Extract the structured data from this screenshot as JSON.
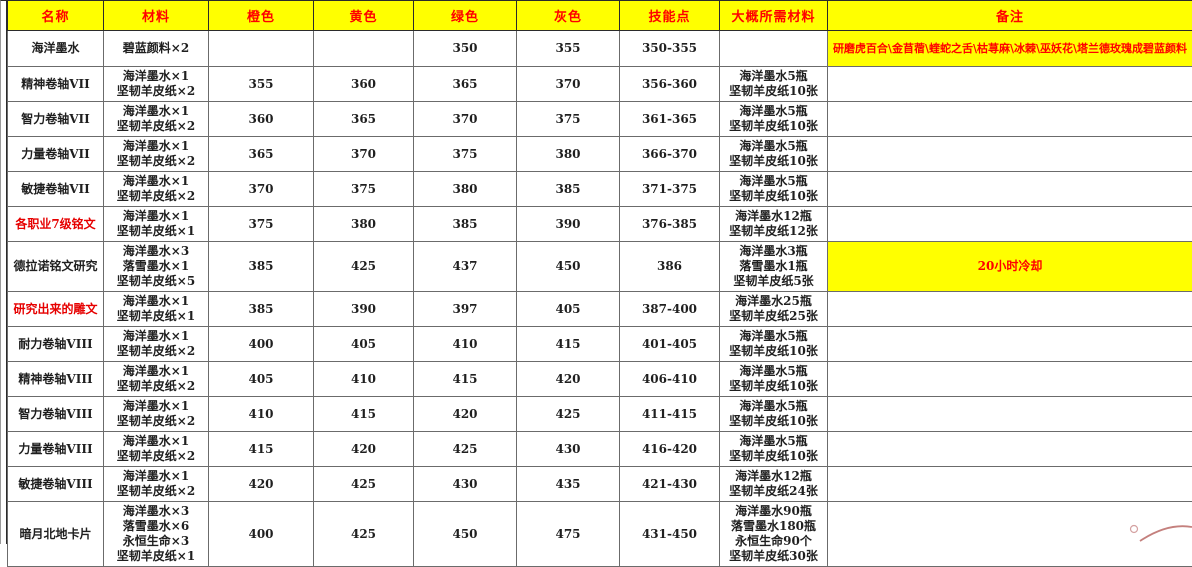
{
  "colors": {
    "header_bg": "#ffff00",
    "header_text": "#ff0000",
    "highlight_bg": "#ffff00",
    "highlight_text": "#ff0000",
    "red_name": "#e60000"
  },
  "table": {
    "columns": [
      {
        "key": "name",
        "label": "名称"
      },
      {
        "key": "materials",
        "label": "材料"
      },
      {
        "key": "orange",
        "label": "橙色"
      },
      {
        "key": "yellow",
        "label": "黄色"
      },
      {
        "key": "green",
        "label": "绿色"
      },
      {
        "key": "gray",
        "label": "灰色"
      },
      {
        "key": "skill",
        "label": "技能点"
      },
      {
        "key": "approx",
        "label": "大概所需材料"
      },
      {
        "key": "note",
        "label": "备注"
      }
    ],
    "rows": [
      {
        "name": "海洋墨水",
        "name_red": false,
        "materials": [
          "碧蓝颜料×2"
        ],
        "orange": "",
        "yellow": "",
        "green": "350",
        "gray": "355",
        "skill": "350-355",
        "approx": [],
        "note": "研磨虎百合\\金苜蓿\\蝰蛇之舌\\枯荨麻\\冰棘\\巫妖花\\塔兰德玫瑰成碧蓝颜料",
        "note_highlight": true,
        "note_long": true
      },
      {
        "name": "精神卷轴VII",
        "name_red": false,
        "materials": [
          "海洋墨水×1",
          "坚韧羊皮纸×2"
        ],
        "orange": "355",
        "yellow": "360",
        "green": "365",
        "gray": "370",
        "skill": "356-360",
        "approx": [
          "海洋墨水5瓶",
          "坚韧羊皮纸10张"
        ],
        "note": "",
        "note_highlight": false,
        "note_long": false
      },
      {
        "name": "智力卷轴VII",
        "name_red": false,
        "materials": [
          "海洋墨水×1",
          "坚韧羊皮纸×2"
        ],
        "orange": "360",
        "yellow": "365",
        "green": "370",
        "gray": "375",
        "skill": "361-365",
        "approx": [
          "海洋墨水5瓶",
          "坚韧羊皮纸10张"
        ],
        "note": "",
        "note_highlight": false,
        "note_long": false
      },
      {
        "name": "力量卷轴VII",
        "name_red": false,
        "materials": [
          "海洋墨水×1",
          "坚韧羊皮纸×2"
        ],
        "orange": "365",
        "yellow": "370",
        "green": "375",
        "gray": "380",
        "skill": "366-370",
        "approx": [
          "海洋墨水5瓶",
          "坚韧羊皮纸10张"
        ],
        "note": "",
        "note_highlight": false,
        "note_long": false
      },
      {
        "name": "敏捷卷轴VII",
        "name_red": false,
        "materials": [
          "海洋墨水×1",
          "坚韧羊皮纸×2"
        ],
        "orange": "370",
        "yellow": "375",
        "green": "380",
        "gray": "385",
        "skill": "371-375",
        "approx": [
          "海洋墨水5瓶",
          "坚韧羊皮纸10张"
        ],
        "note": "",
        "note_highlight": false,
        "note_long": false
      },
      {
        "name": "各职业7级铭文",
        "name_red": true,
        "materials": [
          "海洋墨水×1",
          "坚韧羊皮纸×1"
        ],
        "orange": "375",
        "yellow": "380",
        "green": "385",
        "gray": "390",
        "skill": "376-385",
        "approx": [
          "海洋墨水12瓶",
          "坚韧羊皮纸12张"
        ],
        "note": "",
        "note_highlight": false,
        "note_long": false
      },
      {
        "name": "德拉诺铭文研究",
        "name_red": false,
        "materials": [
          "海洋墨水×3",
          "落雪墨水×1",
          "坚韧羊皮纸×5"
        ],
        "orange": "385",
        "yellow": "425",
        "green": "437",
        "gray": "450",
        "skill": "386",
        "approx": [
          "海洋墨水3瓶",
          "落雪墨水1瓶",
          "坚韧羊皮纸5张"
        ],
        "note": "20小时冷却",
        "note_highlight": true,
        "note_long": false
      },
      {
        "name": "研究出来的雕文",
        "name_red": true,
        "materials": [
          "海洋墨水×1",
          "坚韧羊皮纸×1"
        ],
        "orange": "385",
        "yellow": "390",
        "green": "397",
        "gray": "405",
        "skill": "387-400",
        "approx": [
          "海洋墨水25瓶",
          "坚韧羊皮纸25张"
        ],
        "note": "",
        "note_highlight": false,
        "note_long": false
      },
      {
        "name": "耐力卷轴VIII",
        "name_red": false,
        "materials": [
          "海洋墨水×1",
          "坚韧羊皮纸×2"
        ],
        "orange": "400",
        "yellow": "405",
        "green": "410",
        "gray": "415",
        "skill": "401-405",
        "approx": [
          "海洋墨水5瓶",
          "坚韧羊皮纸10张"
        ],
        "note": "",
        "note_highlight": false,
        "note_long": false
      },
      {
        "name": "精神卷轴VIII",
        "name_red": false,
        "materials": [
          "海洋墨水×1",
          "坚韧羊皮纸×2"
        ],
        "orange": "405",
        "yellow": "410",
        "green": "415",
        "gray": "420",
        "skill": "406-410",
        "approx": [
          "海洋墨水5瓶",
          "坚韧羊皮纸10张"
        ],
        "note": "",
        "note_highlight": false,
        "note_long": false
      },
      {
        "name": "智力卷轴VIII",
        "name_red": false,
        "materials": [
          "海洋墨水×1",
          "坚韧羊皮纸×2"
        ],
        "orange": "410",
        "yellow": "415",
        "green": "420",
        "gray": "425",
        "skill": "411-415",
        "approx": [
          "海洋墨水5瓶",
          "坚韧羊皮纸10张"
        ],
        "note": "",
        "note_highlight": false,
        "note_long": false
      },
      {
        "name": "力量卷轴VIII",
        "name_red": false,
        "materials": [
          "海洋墨水×1",
          "坚韧羊皮纸×2"
        ],
        "orange": "415",
        "yellow": "420",
        "green": "425",
        "gray": "430",
        "skill": "416-420",
        "approx": [
          "海洋墨水5瓶",
          "坚韧羊皮纸10张"
        ],
        "note": "",
        "note_highlight": false,
        "note_long": false
      },
      {
        "name": "敏捷卷轴VIII",
        "name_red": false,
        "materials": [
          "海洋墨水×1",
          "坚韧羊皮纸×2"
        ],
        "orange": "420",
        "yellow": "425",
        "green": "430",
        "gray": "435",
        "skill": "421-430",
        "approx": [
          "海洋墨水12瓶",
          "坚韧羊皮纸24张"
        ],
        "note": "",
        "note_highlight": false,
        "note_long": false
      },
      {
        "name": "暗月北地卡片",
        "name_red": false,
        "materials": [
          "海洋墨水×3",
          "落雪墨水×6",
          "永恒生命×3",
          "坚韧羊皮纸×1"
        ],
        "orange": "400",
        "yellow": "425",
        "green": "450",
        "gray": "475",
        "skill": "431-450",
        "approx": [
          "海洋墨水90瓶",
          "落雪墨水180瓶",
          "永恒生命90个",
          "坚韧羊皮纸30张"
        ],
        "note": "",
        "note_highlight": false,
        "note_long": false
      }
    ]
  }
}
